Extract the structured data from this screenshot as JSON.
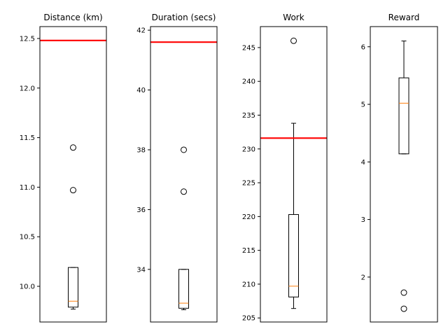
{
  "chart_data": [
    {
      "type": "box",
      "title": "Distance (km)",
      "ylim": [
        9.64,
        12.62
      ],
      "yticks": [
        10.0,
        10.5,
        11.0,
        11.5,
        12.0,
        12.5
      ],
      "tick_labels": [
        "10.0",
        "10.5",
        "11.0",
        "11.5",
        "12.0",
        "12.5"
      ],
      "box": {
        "whisker_low": 9.77,
        "q1": 9.79,
        "median": 9.85,
        "q3": 10.19,
        "whisker_high": 10.19
      },
      "outliers": [
        10.97,
        11.4
      ],
      "reference_line": 12.48
    },
    {
      "type": "box",
      "title": "Duration (secs)",
      "ylim": [
        32.24,
        42.12
      ],
      "yticks": [
        34,
        36,
        38,
        40,
        42
      ],
      "tick_labels": [
        "34",
        "36",
        "38",
        "40",
        "42"
      ],
      "box": {
        "whisker_low": 32.65,
        "q1": 32.7,
        "median": 32.87,
        "q3": 34.0,
        "whisker_high": 34.0
      },
      "outliers": [
        36.6,
        38.0
      ],
      "reference_line": 41.6
    },
    {
      "type": "box",
      "title": "Work",
      "ylim": [
        204.4,
        248.1
      ],
      "yticks": [
        205,
        210,
        215,
        220,
        225,
        230,
        235,
        240,
        245
      ],
      "tick_labels": [
        "205",
        "210",
        "215",
        "220",
        "225",
        "230",
        "235",
        "240",
        "245"
      ],
      "box": {
        "whisker_low": 206.4,
        "q1": 208.1,
        "median": 209.7,
        "q3": 220.3,
        "whisker_high": 233.8
      },
      "outliers": [
        246.0
      ],
      "reference_line": 231.6
    },
    {
      "type": "box",
      "title": "Reward",
      "ylim": [
        1.22,
        6.35
      ],
      "yticks": [
        2,
        3,
        4,
        5,
        6
      ],
      "tick_labels": [
        "2",
        "3",
        "4",
        "5",
        "6"
      ],
      "box": {
        "whisker_low": 4.14,
        "q1": 4.14,
        "median": 5.02,
        "q3": 5.46,
        "whisker_high": 6.1
      },
      "outliers": [
        1.45,
        1.73
      ],
      "reference_line": null
    }
  ]
}
